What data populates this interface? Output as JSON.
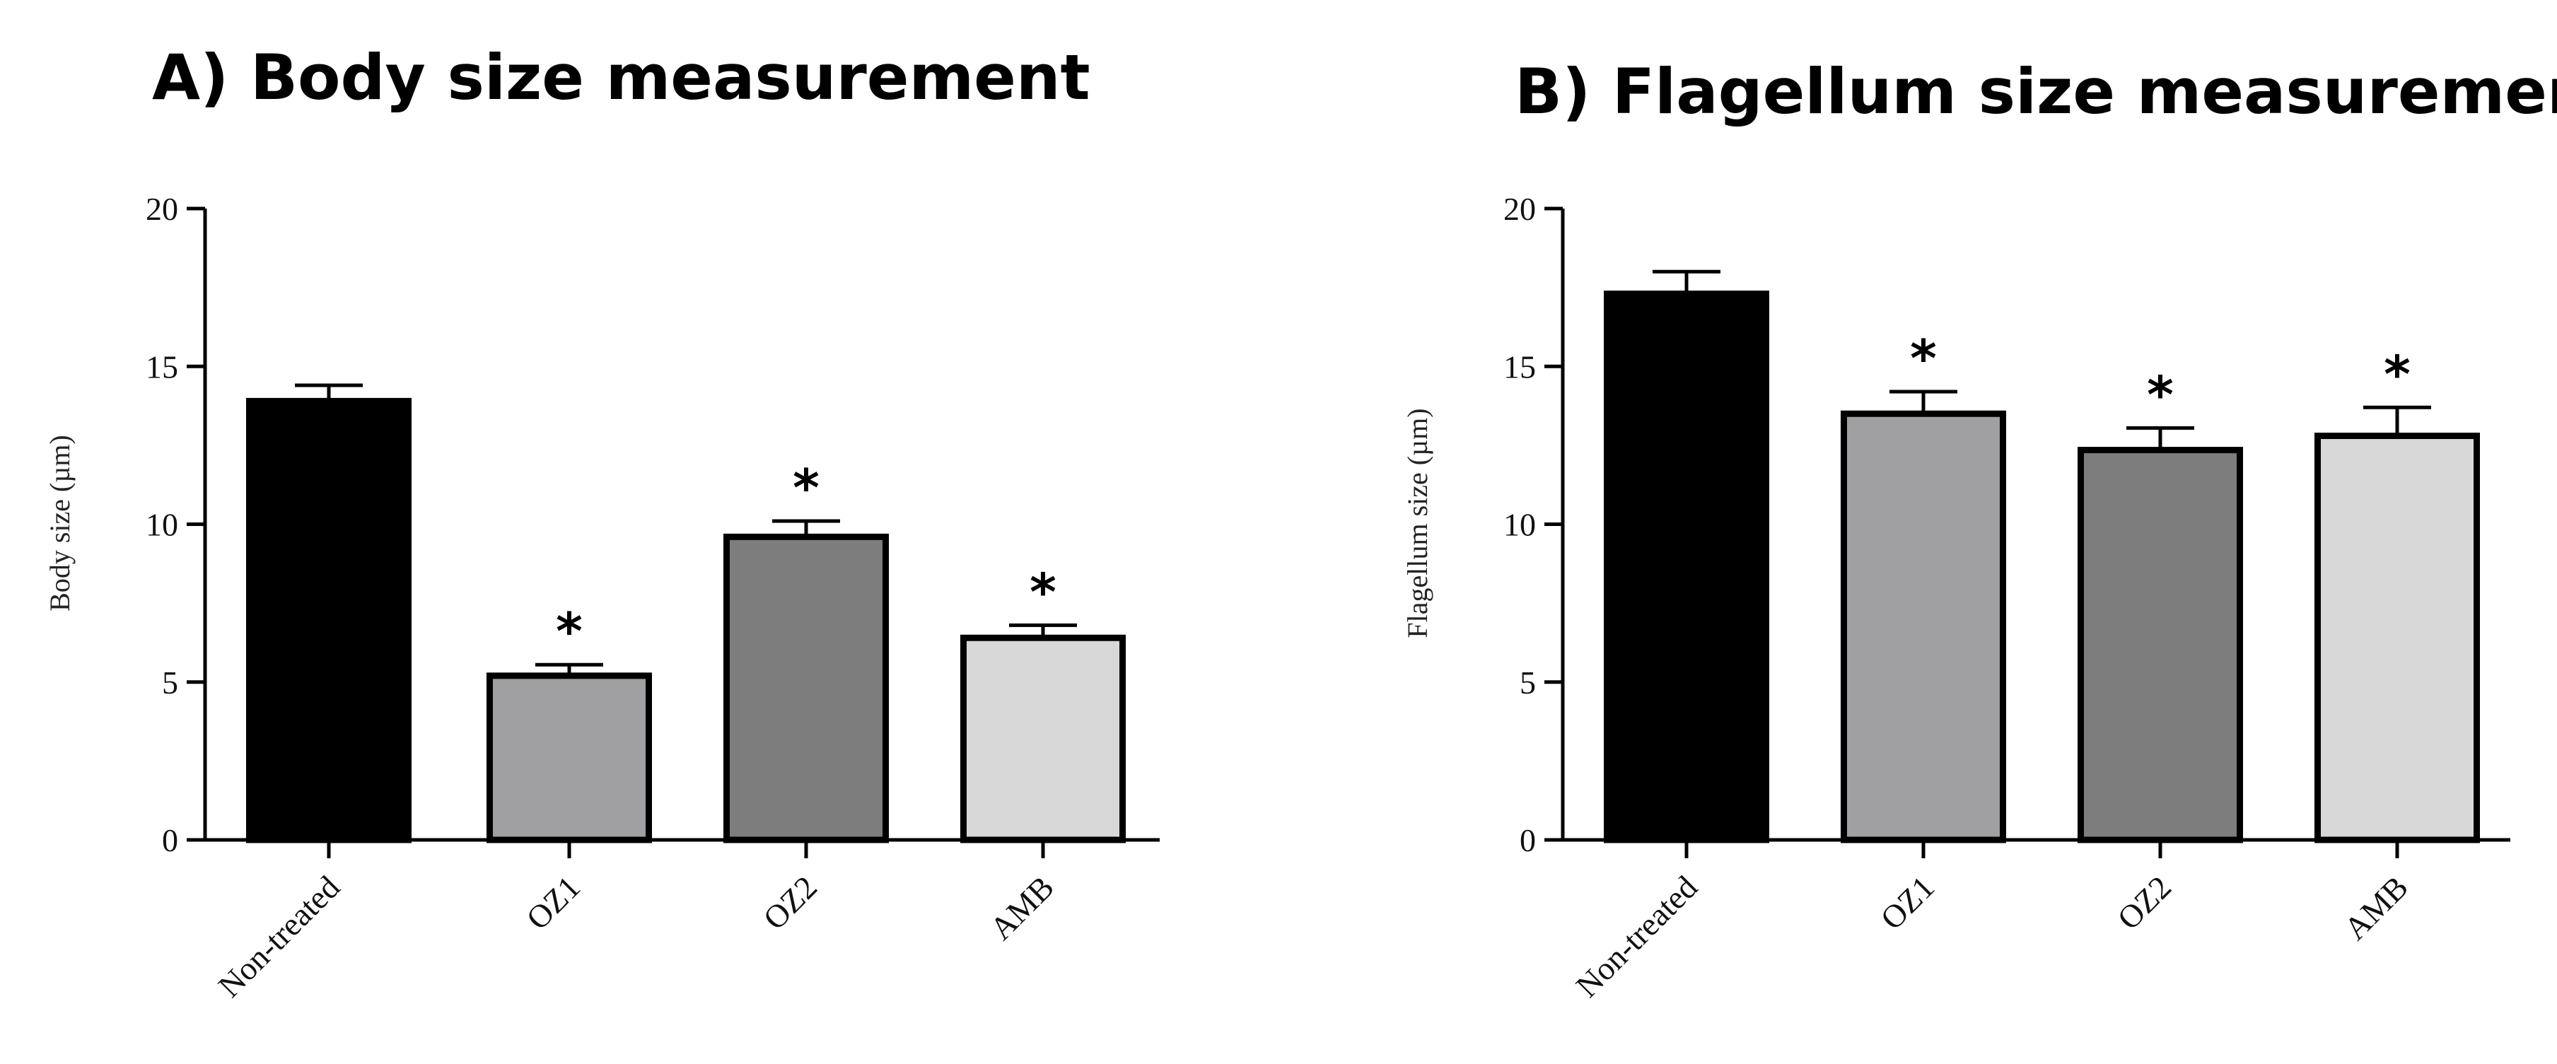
{
  "chart_data": [
    {
      "type": "bar",
      "title": "A) Body size measurement",
      "ylabel": "Body size (µm)",
      "categories": [
        "Non-treated",
        "OZ1",
        "OZ2",
        "AMB"
      ],
      "values": [
        13.9,
        5.2,
        9.6,
        6.4
      ],
      "errors": [
        0.5,
        0.35,
        0.5,
        0.4
      ],
      "significance": [
        "",
        "*",
        "*",
        "*"
      ],
      "ylim": [
        0,
        20
      ],
      "yticks": [
        "0",
        "5",
        "10",
        "15",
        "20"
      ],
      "bar_colors": [
        "#000000",
        "#a0a0a3",
        "#7d7d7d",
        "#d8d8d8"
      ]
    },
    {
      "type": "bar",
      "title": "B) Flagellum size measurement",
      "ylabel": "Flagellum size (µm)",
      "categories": [
        "Non-treated",
        "OZ1",
        "OZ2",
        "AMB"
      ],
      "values": [
        17.3,
        13.5,
        12.35,
        12.8
      ],
      "errors": [
        0.7,
        0.7,
        0.7,
        0.9
      ],
      "significance": [
        "",
        "*",
        "*",
        "*"
      ],
      "ylim": [
        0,
        20
      ],
      "yticks": [
        "0",
        "5",
        "10",
        "15",
        "20"
      ],
      "bar_colors": [
        "#000000",
        "#a0a0a3",
        "#7d7d7d",
        "#d8d8d8"
      ]
    }
  ]
}
